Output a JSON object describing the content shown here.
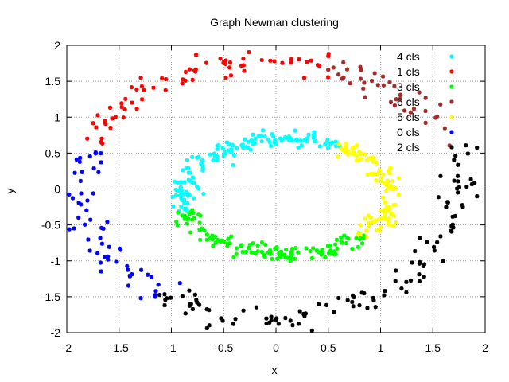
{
  "chart_data": {
    "type": "scatter",
    "title": "Graph Newman clustering",
    "xlabel": "x",
    "ylabel": "y",
    "xlim": [
      -2,
      2
    ],
    "ylim": [
      -2,
      2
    ],
    "xticks": [
      "-2",
      "-1.5",
      "-1",
      "-0.5",
      "0",
      "0.5",
      "1",
      "1.5",
      "2"
    ],
    "yticks": [
      "-2",
      "-1.5",
      "-1",
      "-0.5",
      "0",
      "0.5",
      "1",
      "1.5",
      "2"
    ],
    "grid": true,
    "legend_position": "top-right",
    "series": [
      {
        "name": "4 cls",
        "color": "#00ffff",
        "ring": "inner",
        "angle_range": [
          60,
          195
        ]
      },
      {
        "name": "1 cls",
        "color": "#ff0000",
        "ring": "outer",
        "angle_range": [
          70,
          160
        ]
      },
      {
        "name": "3 cls",
        "color": "#00ff00",
        "ring": "inner",
        "angle_range": [
          195,
          320
        ]
      },
      {
        "name": "6 cls",
        "color": "#a52a2a",
        "ring": "outer",
        "angle_range": [
          20,
          70
        ]
      },
      {
        "name": "5 cls",
        "color": "#ffff00",
        "ring": "inner",
        "angle_range": [
          -40,
          60
        ]
      },
      {
        "name": "0 cls",
        "color": "#0000ff",
        "ring": "outer",
        "angle_range": [
          160,
          235
        ]
      },
      {
        "name": "2 cls",
        "color": "#000000",
        "ring": "outer",
        "angle_range": [
          235,
          380
        ]
      }
    ],
    "rings": {
      "inner": {
        "rx": 1.0,
        "ry": 0.8,
        "cx": 0.1,
        "cy": -0.1,
        "noise": 0.1,
        "points_per_degree": 1.1
      },
      "outer": {
        "rx": 1.82,
        "ry": 1.8,
        "cx": -0.05,
        "cy": 0.0,
        "noise": 0.1,
        "points_per_degree": 0.8
      }
    }
  }
}
